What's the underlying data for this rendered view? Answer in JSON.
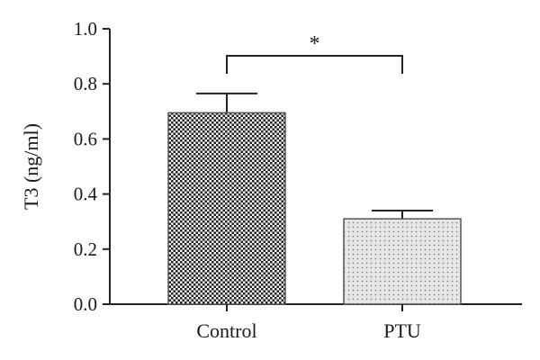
{
  "chart_data": {
    "type": "bar",
    "categories": [
      "Control",
      "PTU"
    ],
    "values": [
      0.695,
      0.31
    ],
    "errors": [
      0.07,
      0.03
    ],
    "ylabel": "T3 (ng/ml)",
    "xlabel": "",
    "ylim": [
      0,
      1.0
    ],
    "yticks": [
      "0.0",
      "0.2",
      "0.4",
      "0.6",
      "0.8",
      "1.0"
    ],
    "ytick_values": [
      0,
      0.2,
      0.4,
      0.6,
      0.8,
      1.0
    ],
    "grid": false,
    "annotation": {
      "text": "*",
      "between": [
        "Control",
        "PTU"
      ]
    },
    "bar_patterns": [
      "dark-checkerboard",
      "light-dotted"
    ]
  }
}
